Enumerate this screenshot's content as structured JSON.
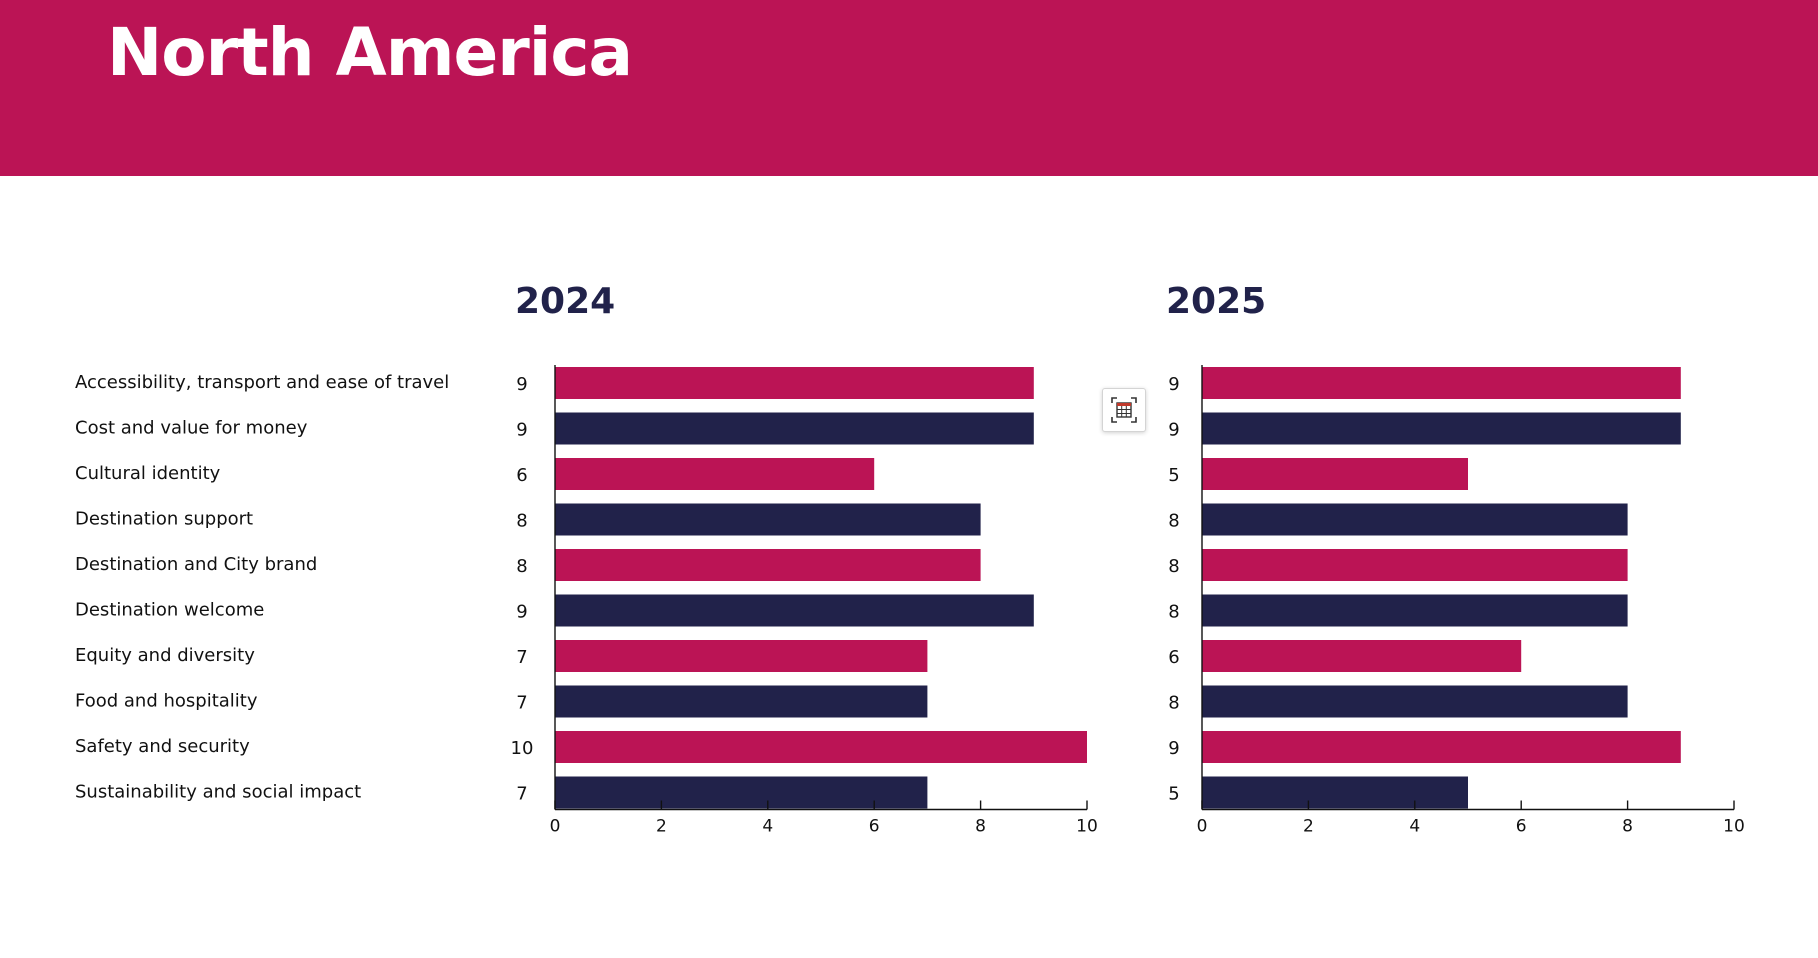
{
  "page": {
    "title": "North America"
  },
  "colors": {
    "header_bg": "#bb1455",
    "accent": "#bb1455",
    "navy": "#21224a",
    "text": "#111111",
    "title_text": "#21224a"
  },
  "toolbar": {
    "table_view_icon": "table-view-icon"
  },
  "chart_data": [
    {
      "type": "bar",
      "orientation": "horizontal",
      "title": "2024",
      "categories": [
        "Accessibility, transport and ease of travel",
        "Cost and value for money",
        "Cultural identity",
        "Destination support",
        "Destination and City brand",
        "Destination welcome",
        "Equity and diversity",
        "Food and hospitality",
        "Safety and security",
        "Sustainability and social impact"
      ],
      "values": [
        9,
        9,
        6,
        8,
        8,
        9,
        7,
        7,
        10,
        7
      ],
      "bar_colors": [
        "#bb1455",
        "#21224a",
        "#bb1455",
        "#21224a",
        "#bb1455",
        "#21224a",
        "#bb1455",
        "#21224a",
        "#bb1455",
        "#21224a"
      ],
      "xlim": [
        0,
        10
      ],
      "xticks": [
        0,
        2,
        4,
        6,
        8,
        10
      ],
      "xlabel": "",
      "ylabel": "",
      "grid": false
    },
    {
      "type": "bar",
      "orientation": "horizontal",
      "title": "2025",
      "categories": [
        "Accessibility, transport and ease of travel",
        "Cost and value for money",
        "Cultural identity",
        "Destination support",
        "Destination and City brand",
        "Destination welcome",
        "Equity and diversity",
        "Food and hospitality",
        "Safety and security",
        "Sustainability and social impact"
      ],
      "values": [
        9,
        9,
        5,
        8,
        8,
        8,
        6,
        8,
        9,
        5
      ],
      "bar_colors": [
        "#bb1455",
        "#21224a",
        "#bb1455",
        "#21224a",
        "#bb1455",
        "#21224a",
        "#bb1455",
        "#21224a",
        "#bb1455",
        "#21224a"
      ],
      "xlim": [
        0,
        10
      ],
      "xticks": [
        0,
        2,
        4,
        6,
        8,
        10
      ],
      "xlabel": "",
      "ylabel": "",
      "grid": false
    }
  ]
}
